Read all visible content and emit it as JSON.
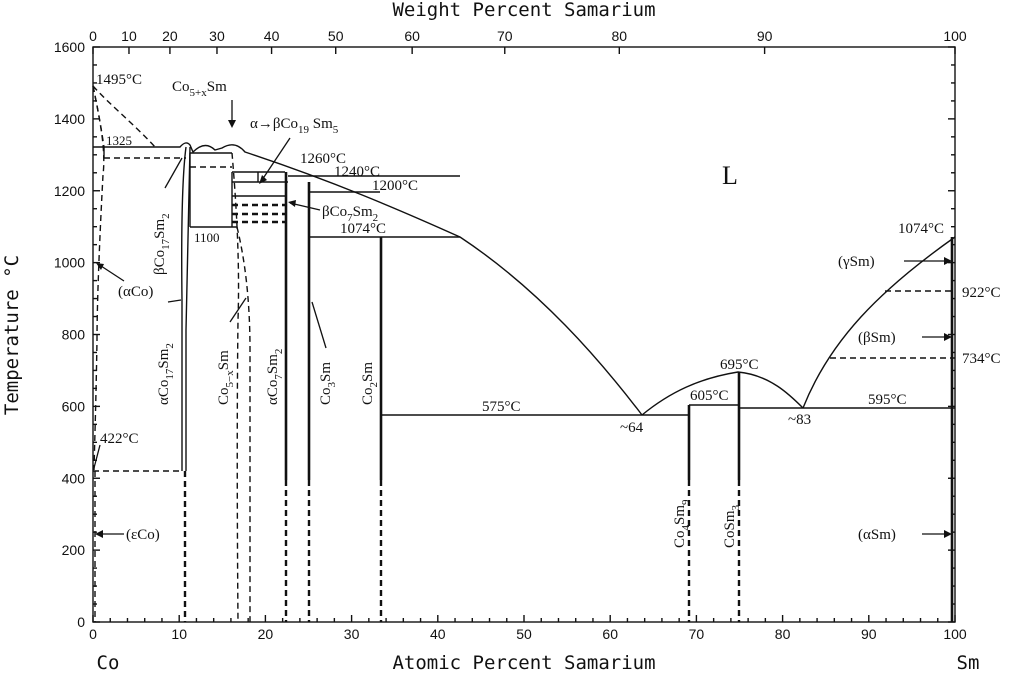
{
  "top_axis_title": "Weight Percent Samarium",
  "bottom_axis_title": "Atomic Percent Samarium",
  "y_axis_title": "Temperature °C",
  "left_element": "Co",
  "right_element": "Sm",
  "liquid_label": "L",
  "y_ticks": [
    "0",
    "200",
    "400",
    "600",
    "800",
    "1000",
    "1200",
    "1400",
    "1600"
  ],
  "x_ticks": [
    "0",
    "10",
    "20",
    "30",
    "40",
    "50",
    "60",
    "70",
    "80",
    "90",
    "100"
  ],
  "top_ticks": [
    "0",
    "10",
    "20",
    "30",
    "40",
    "50",
    "60",
    "70",
    "80",
    "90",
    "100"
  ],
  "labels": {
    "t1495": "1495°C",
    "t1325": "1325",
    "t1100": "1100",
    "t1260": "1260°C",
    "t1240": "1240°C",
    "t1200": "1200°C",
    "t1074a": "1074°C",
    "t1074b": "1074°C",
    "t922": "922°C",
    "t734": "734°C",
    "t695": "695°C",
    "t605": "605°C",
    "t595": "595°C",
    "t575": "575°C",
    "t422": "422°C",
    "e64": "~64",
    "e83": "~83",
    "co5xsm_top": "Co",
    "co5xsm_top_sub": "5+x",
    "co5xsm_top_sm": "Sm",
    "alpha_beta": "α→βCo",
    "alpha_beta_sub19": "19",
    "alpha_beta_sm": " Sm",
    "alpha_beta_sub5": "5",
    "beta_co7sm2": "βCo",
    "beta_co7sm2_sub7": "7",
    "beta_co7sm2_sm": "Sm",
    "beta_co7sm2_sub2": "2",
    "beta_co17sm2": "βCo",
    "beta_co17sm2_sub17": "17",
    "beta_co17sm2_sm": "Sm",
    "beta_co17sm2_sub2": "2",
    "alpha_co17sm2": "αCo",
    "alpha_co17sm2_sub17": "17",
    "alpha_co17sm2_sm": "Sm",
    "alpha_co17sm2_sub2": "2",
    "co5xsm": "Co",
    "co5xsm_sub": "5−x",
    "co5xsm_sm": "Sm",
    "alpha_co7sm2": "αCo",
    "alpha_co7sm2_sub7": "7",
    "alpha_co7sm2_sm": "Sm",
    "alpha_co7sm2_sub2": "2",
    "co3sm": "Co",
    "co3sm_sub": "3",
    "co3sm_sm": "Sm",
    "co2sm": "Co",
    "co2sm_sub": "2",
    "co2sm_sm": "Sm",
    "co4sm9": "Co",
    "co4sm9_sub4": "4",
    "co4sm9_sm": "Sm",
    "co4sm9_sub9": "9",
    "cosm3": "CoSm",
    "cosm3_sub": "3",
    "alpha_co": "(αCo)",
    "eps_co": "(εCo)",
    "gamma_sm": "(γSm)",
    "beta_sm": "(βSm)",
    "alpha_sm": "(αSm)"
  }
}
